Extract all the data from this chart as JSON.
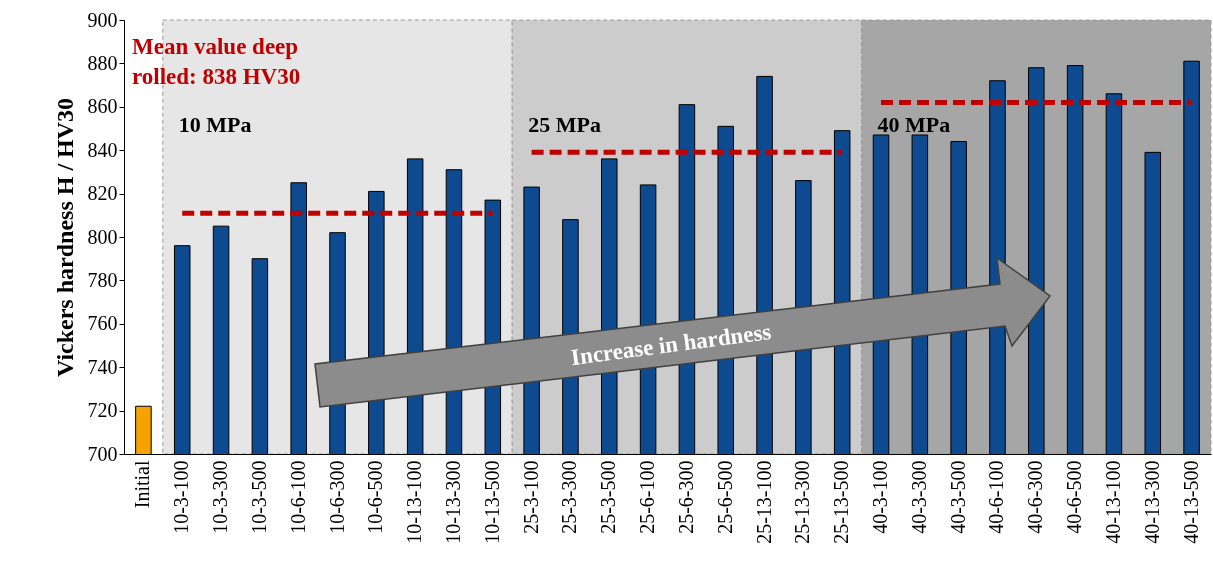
{
  "chart_data": {
    "type": "bar",
    "ylabel": "Vickers hardness H / HV30",
    "categories": [
      "Initial",
      "10-3-100",
      "10-3-300",
      "10-3-500",
      "10-6-100",
      "10-6-300",
      "10-6-500",
      "10-13-100",
      "10-13-300",
      "10-13-500",
      "25-3-100",
      "25-3-300",
      "25-3-500",
      "25-6-100",
      "25-6-300",
      "25-6-500",
      "25-13-100",
      "25-13-300",
      "25-13-500",
      "40-3-100",
      "40-3-300",
      "40-3-500",
      "40-6-100",
      "40-6-300",
      "40-6-500",
      "40-13-100",
      "40-13-300",
      "40-13-500"
    ],
    "series": [
      {
        "values": [
          722,
          796,
          805,
          790,
          825,
          802,
          821,
          836,
          831,
          817,
          823,
          808,
          836,
          824,
          861,
          851,
          874,
          826,
          849,
          847,
          847,
          844,
          872,
          878,
          879,
          866,
          839,
          881
        ],
        "colors": [
          "#f5a300",
          "#0d4a8f",
          "#0d4a8f",
          "#0d4a8f",
          "#0d4a8f",
          "#0d4a8f",
          "#0d4a8f",
          "#0d4a8f",
          "#0d4a8f",
          "#0d4a8f",
          "#0d4a8f",
          "#0d4a8f",
          "#0d4a8f",
          "#0d4a8f",
          "#0d4a8f",
          "#0d4a8f",
          "#0d4a8f",
          "#0d4a8f",
          "#0d4a8f",
          "#0d4a8f",
          "#0d4a8f",
          "#0d4a8f",
          "#0d4a8f",
          "#0d4a8f",
          "#0d4a8f",
          "#0d4a8f",
          "#0d4a8f",
          "#0d4a8f"
        ]
      },
      {
        "type": "line",
        "color": "#c00000",
        "line_style": "dashed",
        "values": [
          null,
          811,
          811,
          811,
          811,
          811,
          811,
          811,
          811,
          811,
          null,
          null,
          null,
          null,
          null,
          null,
          null,
          null,
          null,
          null,
          null,
          null,
          null,
          null,
          null,
          null,
          null,
          null
        ]
      },
      {
        "type": "line",
        "color": "#c00000",
        "line_style": "dashed",
        "values": [
          null,
          null,
          null,
          null,
          null,
          null,
          null,
          null,
          null,
          null,
          839,
          839,
          839,
          839,
          839,
          839,
          839,
          839,
          839,
          null,
          null,
          null,
          null,
          null,
          null,
          null,
          null,
          null
        ]
      },
      {
        "type": "line",
        "color": "#c00000",
        "line_style": "dashed",
        "values": [
          null,
          null,
          null,
          null,
          null,
          null,
          null,
          null,
          null,
          null,
          null,
          null,
          null,
          null,
          null,
          null,
          null,
          null,
          null,
          862,
          862,
          862,
          862,
          862,
          862,
          862,
          862,
          862
        ]
      }
    ],
    "ylim": [
      700,
      900
    ],
    "yticks": [
      700,
      720,
      740,
      760,
      780,
      800,
      820,
      840,
      860,
      880,
      900
    ],
    "bands": [
      {
        "axis": "x",
        "from": "10-3-100",
        "to": "10-13-500",
        "label": "10 MPa",
        "color": "#e6e6e6"
      },
      {
        "axis": "x",
        "from": "25-3-100",
        "to": "25-13-500",
        "label": "25 MPa",
        "color": "#cccccc"
      },
      {
        "axis": "x",
        "from": "40-3-100",
        "to": "40-13-500",
        "label": "40 MPa",
        "color": "#a6a6a6"
      }
    ],
    "annotations": [
      "Mean value deep rolled: 838 HV30",
      "Increase in hardness"
    ]
  }
}
